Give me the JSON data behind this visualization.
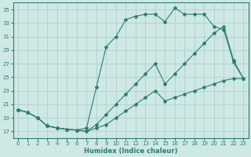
{
  "xlabel": "Humidex (Indice chaleur)",
  "bg_color": "#cde8e5",
  "grid_color": "#b0d0cc",
  "line_color": "#2e7d72",
  "xlim": [
    -0.5,
    23.5
  ],
  "ylim": [
    16.0,
    36.0
  ],
  "yticks": [
    17,
    19,
    21,
    23,
    25,
    27,
    29,
    31,
    33,
    35
  ],
  "xticks": [
    0,
    1,
    2,
    3,
    4,
    5,
    6,
    7,
    8,
    9,
    10,
    11,
    12,
    13,
    14,
    15,
    16,
    17,
    18,
    19,
    20,
    21,
    22,
    23
  ],
  "line1_x": [
    0,
    1,
    2,
    3,
    4,
    5,
    6,
    7,
    8,
    9,
    10,
    11,
    12,
    13,
    14,
    15,
    16,
    17,
    18,
    19,
    20,
    21,
    22,
    23
  ],
  "line1_y": [
    20.2,
    19.8,
    19.0,
    17.8,
    17.5,
    17.3,
    17.2,
    17.5,
    23.5,
    29.5,
    31.0,
    33.5,
    34.0,
    34.3,
    34.3,
    33.2,
    35.2,
    34.3,
    34.3,
    34.3,
    32.5,
    32.0,
    27.2,
    24.8
  ],
  "line2_x": [
    0,
    1,
    2,
    3,
    4,
    5,
    6,
    7,
    8,
    9,
    10,
    11,
    12,
    13,
    14,
    15,
    16,
    17,
    18,
    19,
    20,
    21,
    22,
    23
  ],
  "line2_y": [
    20.2,
    19.8,
    19.0,
    17.8,
    17.5,
    17.3,
    17.2,
    17.0,
    18.0,
    19.5,
    21.0,
    22.5,
    24.0,
    25.5,
    27.0,
    24.0,
    25.5,
    27.0,
    28.5,
    30.0,
    31.5,
    32.5,
    27.5,
    24.8
  ],
  "line3_x": [
    0,
    1,
    2,
    3,
    4,
    5,
    6,
    7,
    8,
    9,
    10,
    11,
    12,
    13,
    14,
    15,
    16,
    17,
    18,
    19,
    20,
    21,
    22,
    23
  ],
  "line3_y": [
    20.2,
    19.8,
    19.0,
    17.8,
    17.5,
    17.3,
    17.2,
    17.0,
    17.5,
    18.0,
    19.0,
    20.0,
    21.0,
    22.0,
    23.0,
    21.5,
    22.0,
    22.5,
    23.0,
    23.5,
    24.0,
    24.5,
    24.8,
    24.8
  ]
}
